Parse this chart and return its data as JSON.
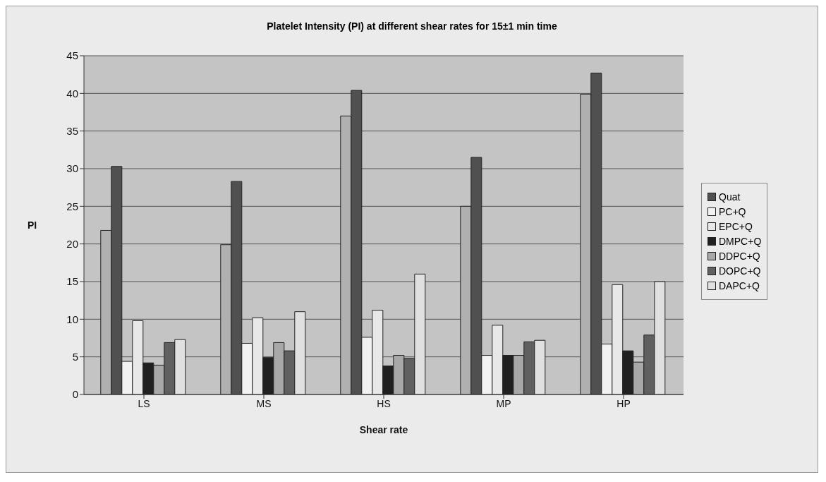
{
  "chart_data": {
    "type": "bar",
    "title": "Platelet Intensity (PI) at different shear rates for 15±1 min time",
    "xlabel": "Shear rate",
    "ylabel": "PI",
    "categories": [
      "LS",
      "MS",
      "HS",
      "MP",
      "HP"
    ],
    "series": [
      {
        "color": "#b0b0b0",
        "values": [
          21.8,
          19.9,
          37,
          25,
          39.9
        ]
      },
      {
        "name": "Quat",
        "color": "#505050",
        "values": [
          30.3,
          28.3,
          40.4,
          31.5,
          42.7
        ]
      },
      {
        "name": "PC+Q",
        "color": "#f2f2f2",
        "values": [
          4.4,
          6.8,
          7.6,
          5.2,
          6.7
        ]
      },
      {
        "name": "EPC+Q",
        "color": "#e8e8e8",
        "values": [
          9.8,
          10.2,
          11.2,
          9.2,
          14.6
        ]
      },
      {
        "name": "DMPC+Q",
        "color": "#202020",
        "values": [
          4.2,
          4.9,
          3.8,
          5.2,
          5.8
        ]
      },
      {
        "name": "DDPC+Q",
        "color": "#a8a8a8",
        "values": [
          3.9,
          6.9,
          5.2,
          5.2,
          4.3
        ]
      },
      {
        "name": "DOPC+Q",
        "color": "#606060",
        "values": [
          6.9,
          5.8,
          4.8,
          7.0,
          7.9
        ]
      },
      {
        "name": "DAPC+Q",
        "color": "#e0e0e0",
        "values": [
          7.3,
          11.0,
          16.0,
          7.2,
          15.0
        ]
      }
    ],
    "ylim": [
      0,
      45
    ],
    "yticks": [
      0,
      5,
      10,
      15,
      20,
      25,
      30,
      35,
      40,
      45
    ],
    "grid": "y",
    "legend": "right"
  }
}
